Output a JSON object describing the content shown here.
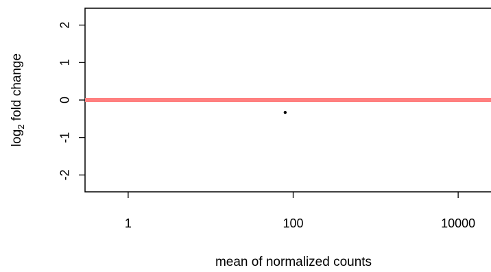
{
  "chart_data": {
    "type": "scatter",
    "title": "",
    "xlabel": "mean of normalized counts",
    "ylabel_main": "log",
    "ylabel_subscript": "2",
    "ylabel_rest": " fold change",
    "x_scale": "log10",
    "xlim": [
      0.3,
      25000
    ],
    "ylim": [
      -2.45,
      2.45
    ],
    "x_ticks": [
      {
        "value": 1,
        "label": "1"
      },
      {
        "value": 100,
        "label": "100"
      },
      {
        "value": 10000,
        "label": "10000"
      }
    ],
    "y_ticks": [
      {
        "value": -2,
        "label": "-2"
      },
      {
        "value": -1,
        "label": "-1"
      },
      {
        "value": 0,
        "label": "0"
      },
      {
        "value": 1,
        "label": "1"
      },
      {
        "value": 2,
        "label": "2"
      }
    ],
    "reference_line": {
      "y": 0,
      "color": "#ff7f7f"
    },
    "points": [
      {
        "x": 80,
        "y": -0.33
      }
    ],
    "point_color": "#000000",
    "grid": false,
    "legend": "none"
  }
}
